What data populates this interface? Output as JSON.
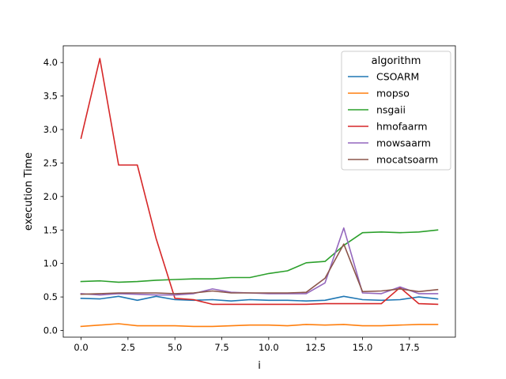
{
  "chart_data": {
    "type": "line",
    "xlabel": "i",
    "ylabel": "execution Time",
    "xlim": [
      -0.95,
      19.95
    ],
    "ylim": [
      -0.1,
      4.25
    ],
    "xticks": [
      0.0,
      2.5,
      5.0,
      7.5,
      10.0,
      12.5,
      15.0,
      17.5
    ],
    "xtick_labels": [
      "0.0",
      "2.5",
      "5.0",
      "7.5",
      "10.0",
      "12.5",
      "15.0",
      "17.5"
    ],
    "yticks": [
      0.0,
      0.5,
      1.0,
      1.5,
      2.0,
      2.5,
      3.0,
      3.5,
      4.0
    ],
    "ytick_labels": [
      "0.0",
      "0.5",
      "1.0",
      "1.5",
      "2.0",
      "2.5",
      "3.0",
      "3.5",
      "4.0"
    ],
    "grid": false,
    "legend": {
      "title": "algorithm",
      "position": "top-right"
    },
    "x": [
      0,
      1,
      2,
      3,
      4,
      5,
      6,
      7,
      8,
      9,
      10,
      11,
      12,
      13,
      14,
      15,
      16,
      17,
      18,
      19
    ],
    "series": [
      {
        "name": "CSOARM",
        "color": "#1f77b4",
        "values": [
          0.48,
          0.47,
          0.51,
          0.45,
          0.51,
          0.46,
          0.45,
          0.46,
          0.44,
          0.46,
          0.45,
          0.45,
          0.44,
          0.45,
          0.51,
          0.46,
          0.45,
          0.46,
          0.5,
          0.47
        ]
      },
      {
        "name": "mopso",
        "color": "#ff7f0e",
        "values": [
          0.06,
          0.08,
          0.1,
          0.07,
          0.07,
          0.07,
          0.06,
          0.06,
          0.07,
          0.08,
          0.08,
          0.07,
          0.09,
          0.08,
          0.09,
          0.07,
          0.07,
          0.08,
          0.09,
          0.09
        ]
      },
      {
        "name": "nsgaii",
        "color": "#2ca02c",
        "values": [
          0.73,
          0.74,
          0.72,
          0.73,
          0.75,
          0.76,
          0.77,
          0.77,
          0.79,
          0.79,
          0.85,
          0.89,
          1.01,
          1.03,
          1.27,
          1.46,
          1.47,
          1.46,
          1.47,
          1.5
        ]
      },
      {
        "name": "hmofaarm",
        "color": "#d62728",
        "values": [
          2.87,
          4.06,
          2.47,
          2.47,
          1.37,
          0.48,
          0.46,
          0.39,
          0.39,
          0.39,
          0.39,
          0.39,
          0.39,
          0.4,
          0.4,
          0.4,
          0.4,
          0.64,
          0.4,
          0.39
        ]
      },
      {
        "name": "mowsaarm",
        "color": "#9467bd",
        "values": [
          0.55,
          0.53,
          0.55,
          0.54,
          0.53,
          0.53,
          0.55,
          0.62,
          0.57,
          0.56,
          0.55,
          0.55,
          0.55,
          0.71,
          1.53,
          0.56,
          0.55,
          0.65,
          0.55,
          0.55
        ]
      },
      {
        "name": "mocatsoarm",
        "color": "#8c564b",
        "values": [
          0.54,
          0.55,
          0.56,
          0.56,
          0.56,
          0.55,
          0.56,
          0.59,
          0.56,
          0.56,
          0.56,
          0.56,
          0.57,
          0.78,
          1.29,
          0.58,
          0.59,
          0.62,
          0.58,
          0.61
        ]
      }
    ]
  }
}
